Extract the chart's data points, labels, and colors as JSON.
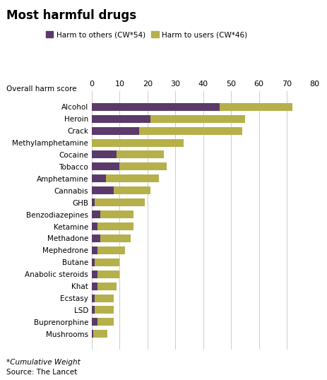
{
  "title": "Most harmful drugs",
  "subtitle": "Overall harm score",
  "xlabel_note": "*Cumulative Weight",
  "source": "Source: The Lancet",
  "legend_others": "Harm to others (CW*54)",
  "legend_users": "Harm to users (CW*46)",
  "color_others": "#5b3a6b",
  "color_users": "#b5b04a",
  "background": "#ffffff",
  "xlim": [
    0,
    80
  ],
  "xticks": [
    0,
    10,
    20,
    30,
    40,
    50,
    60,
    70,
    80
  ],
  "drugs": [
    "Alcohol",
    "Heroin",
    "Crack",
    "Methylamphetamine",
    "Cocaine",
    "Tobacco",
    "Amphetamine",
    "Cannabis",
    "GHB",
    "Benzodiazepines",
    "Ketamine",
    "Methadone",
    "Mephedrone",
    "Butane",
    "Anabolic steroids",
    "Khat",
    "Ecstasy",
    "LSD",
    "Buprenorphine",
    "Mushrooms"
  ],
  "harm_others": [
    46,
    21,
    17,
    0,
    9,
    10,
    5,
    8,
    1,
    3,
    2,
    3,
    2,
    1,
    2,
    2,
    1,
    1,
    2,
    0.5
  ],
  "harm_users": [
    26,
    34,
    37,
    33,
    17,
    17,
    19,
    13,
    18,
    12,
    13,
    11,
    10,
    9,
    8,
    7,
    7,
    7,
    6,
    5
  ]
}
